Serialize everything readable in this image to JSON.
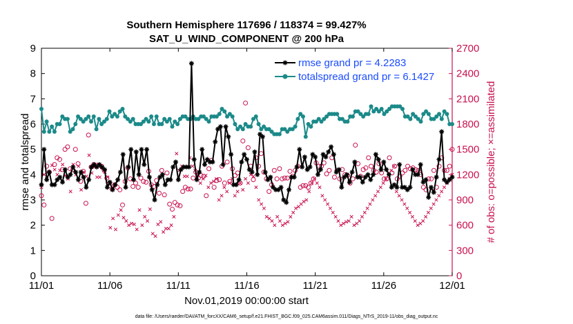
{
  "chart_data": {
    "type": "line",
    "title": "Southern Hemisphere 117696 / 118374 = 99.427%",
    "subtitle": "SAT_U_WIND_COMPONENT @ 200 hPa",
    "xlabel": "Nov.01,2019 00:00:00 start",
    "ylabel": "rmse and totalspread",
    "ylabel_right": "# of obs: o=possible; ×=assimilated",
    "xlim": [
      0,
      30
    ],
    "ylim": [
      0,
      9
    ],
    "ylim_right": [
      0,
      2700
    ],
    "x_ticks": [
      0,
      5,
      10,
      15,
      20,
      25,
      30
    ],
    "x_tick_labels": [
      "11/01",
      "11/06",
      "11/11",
      "11/16",
      "11/21",
      "11/26",
      "12/01"
    ],
    "y_ticks": [
      "0",
      "1",
      "2",
      "3",
      "4",
      "5",
      "6",
      "7",
      "8",
      "9"
    ],
    "y_right_ticks": [
      "0",
      "300",
      "600",
      "900",
      "1200",
      "1500",
      "1800",
      "2100",
      "2400",
      "2700"
    ],
    "grid": false,
    "legend_position": "top-right",
    "series": [
      {
        "name": "rmse",
        "legend": "rmse grand pr = 4.2283",
        "color": "#000000",
        "axis": "left",
        "values": [
          3.6,
          5.0,
          3.8,
          4.1,
          3.6,
          3.6,
          3.8,
          3.9,
          3.7,
          4.2,
          3.9,
          4.0,
          4.3,
          4.1,
          3.8,
          4.1,
          3.9,
          3.5,
          3.8,
          4.3,
          4.4,
          4.3,
          4.4,
          4.3,
          4.2,
          3.5,
          3.7,
          3.4,
          3.6,
          3.8,
          4.1,
          4.8,
          3.5,
          4.3,
          5.0,
          3.8,
          4.9,
          4.0,
          5.0,
          4.4,
          5.0,
          3.9,
          3.4,
          3.0,
          3.6,
          3.9,
          4.0,
          3.6,
          3.8,
          3.8,
          4.3,
          4.5,
          3.8,
          4.2,
          4.3,
          4.3,
          4.3,
          8.4,
          4.6,
          3.8,
          4.1,
          5.0,
          4.4,
          4.6,
          4.5,
          4.5,
          5.3,
          5.8,
          5.9,
          4.4,
          5.9,
          5.5,
          4.8,
          3.6,
          3.6,
          3.8,
          4.5,
          4.8,
          4.6,
          4.2,
          4.1,
          4.9,
          4.0,
          5.6,
          5.5,
          4.1,
          3.8,
          3.9,
          3.5,
          3.4,
          3.4,
          3.5,
          3.0,
          2.9,
          3.4,
          3.9,
          3.9,
          4.3,
          5.0,
          4.3,
          4.7,
          4.2,
          4.3,
          4.8,
          4.7,
          4.0,
          4.2,
          4.8,
          4.7,
          4.9,
          5.1,
          4.8,
          4.1,
          4.2,
          3.5,
          3.9,
          4.0,
          3.7,
          4.1,
          4.5,
          3.9,
          3.9,
          3.7,
          3.9,
          4.0,
          3.8,
          4.0,
          4.8,
          4.6,
          4.2,
          4.5,
          4.2,
          4.0,
          3.5,
          3.6,
          3.5,
          4.4,
          3.5,
          3.5,
          3.4,
          3.5,
          4.2,
          4.0,
          4.0,
          4.4,
          3.7,
          3.8,
          3.1,
          3.5,
          3.3,
          3.9,
          4.6,
          5.7,
          3.8,
          3.7,
          3.8,
          3.9
        ]
      },
      {
        "name": "totalspread",
        "legend": "totalspread grand pr = 6.1427",
        "color": "#1b8a89",
        "axis": "left",
        "values": [
          6.6,
          5.7,
          6.1,
          5.7,
          5.9,
          5.7,
          6.0,
          6.0,
          6.3,
          6.2,
          6.2,
          5.7,
          5.8,
          6.0,
          6.3,
          6.2,
          6.1,
          6.2,
          6.3,
          6.1,
          6.3,
          5.8,
          6.2,
          6.0,
          6.1,
          6.2,
          6.5,
          6.3,
          6.4,
          6.3,
          6.5,
          6.6,
          6.3,
          6.2,
          6.1,
          6.2,
          6.0,
          6.0,
          6.0,
          6.1,
          6.2,
          6.1,
          6.3,
          6.0,
          6.3,
          6.0,
          6.0,
          6.2,
          6.1,
          6.2,
          5.9,
          6.1,
          6.0,
          6.2,
          6.3,
          6.3,
          6.2,
          6.2,
          6.3,
          6.2,
          6.2,
          6.3,
          6.3,
          6.2,
          6.1,
          6.3,
          6.3,
          6.3,
          6.4,
          6.6,
          6.5,
          6.3,
          6.4,
          6.3,
          6.0,
          5.8,
          5.9,
          5.8,
          6.0,
          5.9,
          5.9,
          6.2,
          6.3,
          6.0,
          5.8,
          5.9,
          5.8,
          5.8,
          5.7,
          5.6,
          5.6,
          5.6,
          5.8,
          5.8,
          5.7,
          5.8,
          5.8,
          5.9,
          6.2,
          6.4,
          6.3,
          5.5,
          6.0,
          5.9,
          6.1,
          6.1,
          6.2,
          6.1,
          6.2,
          6.3,
          6.4,
          6.4,
          6.4,
          6.4,
          6.2,
          6.2,
          6.1,
          6.1,
          6.3,
          6.3,
          6.5,
          6.5,
          6.4,
          6.3,
          6.4,
          6.4,
          6.7,
          6.5,
          6.6,
          6.5,
          6.6,
          6.4,
          6.5,
          6.6,
          6.7,
          6.7,
          6.7,
          6.7,
          6.6,
          6.3,
          6.3,
          6.2,
          6.4,
          6.3,
          6.2,
          6.1,
          6.4,
          6.5,
          6.4,
          6.2,
          6.2,
          6.3,
          6.4,
          6.2,
          6.5,
          6.4,
          6.0,
          6.0
        ]
      },
      {
        "name": "possible",
        "color": "#c8104f",
        "axis": "right",
        "values": [
          950,
          840,
          1300,
          1230,
          680,
          1320,
          1400,
          1380,
          1260,
          1500,
          1530,
          1270,
          1260,
          1500,
          1330,
          1120,
          1240,
          860,
          1670,
          1290,
          1320,
          1310,
          1310,
          1300,
          1250,
          1160,
          1100,
          1030,
          1080,
          1050,
          1020,
          840,
          1120,
          1280,
          1150,
          1060,
          1100,
          1050,
          1160,
          1120,
          1110,
          1240,
          1080,
          1060,
          1130,
          980,
          1250,
          960,
          1220,
          850,
          790,
          870,
          840,
          830,
          1000,
          1050,
          1030,
          1030,
          1160,
          1230,
          1160,
          1190,
          1180,
          950,
          1270,
          1370,
          1050,
          1130,
          1140,
          1300,
          1100,
          1350,
          1120,
          1270,
          1190,
          1220,
          1100,
          1600,
          2050,
          1520,
          1300,
          1140,
          1400,
          1300,
          1450,
          1230,
          1150,
          1000,
          1080,
          1250,
          1150,
          1270,
          1150,
          1160,
          1160,
          1240,
          1180,
          1250,
          1300,
          1050,
          1070,
          1070,
          1050,
          1100,
          1150,
          1340,
          1300,
          1300,
          1340,
          1210,
          1250,
          1400,
          1170,
          1250,
          1150,
          1260,
          1200,
          1190,
          1100,
          1150,
          1550,
          1330,
          1180,
          1260,
          1280,
          1400,
          1300,
          1250,
          1230,
          1330,
          1220,
          1150,
          1150,
          1400,
          1220,
          1300,
          1150,
          1180,
          1220,
          1250,
          1300,
          1270,
          1280,
          1260,
          1250,
          1200,
          1050,
          1020,
          1150,
          1150,
          1250,
          1050,
          1300,
          1400,
          1250,
          1250,
          1300,
          1500
        ]
      },
      {
        "name": "assimilated",
        "color": "#c8104f",
        "axis": "right",
        "values": [
          1050,
          1200,
          1150,
          1200,
          1310,
          1260,
          1200,
          1250,
          1320,
          1190,
          1150,
          1000,
          1320,
          1200,
          1300,
          1020,
          1230,
          1180,
          1430,
          1220,
          1290,
          1170,
          1170,
          1280,
          1230,
          1170,
          570,
          680,
          550,
          720,
          780,
          690,
          650,
          600,
          620,
          610,
          550,
          780,
          600,
          700,
          650,
          790,
          500,
          470,
          610,
          640,
          520,
          560,
          560,
          600,
          700,
          1450,
          1250,
          1300,
          1180,
          1180,
          1400,
          1300,
          1250,
          1200,
          1100,
          1150,
          1190,
          1050,
          1100,
          1120,
          1150,
          900,
          950,
          1050,
          1000,
          1100,
          1150,
          950,
          1000,
          1100,
          1020,
          1150,
          1100,
          1200,
          1180,
          1050,
          900,
          850,
          800,
          700,
          680,
          650,
          600,
          700,
          650,
          600,
          620,
          640,
          700,
          750,
          800,
          820,
          850,
          880,
          900,
          1000,
          1100,
          1150,
          1100,
          1050,
          950,
          900,
          850,
          800,
          750,
          700,
          650,
          600,
          620,
          640,
          650,
          700,
          600,
          620,
          650,
          700,
          750,
          800,
          850,
          900,
          950,
          1000,
          1050,
          1100,
          1150,
          1200,
          1250,
          1300,
          1000,
          950,
          900,
          850,
          800,
          750,
          700,
          650,
          600,
          620,
          650,
          700,
          750,
          800,
          850,
          900,
          950,
          1000,
          1050,
          1100,
          1150,
          1200
        ]
      }
    ]
  },
  "footer": "data file: /Users/raeder/DAI/ATM_forcXX/CAM6_setup/f.e21.FHIST_BGC.f09_025.CAM6assim.011/Diags_NTrS_2019-11/obs_diag_output.nc"
}
